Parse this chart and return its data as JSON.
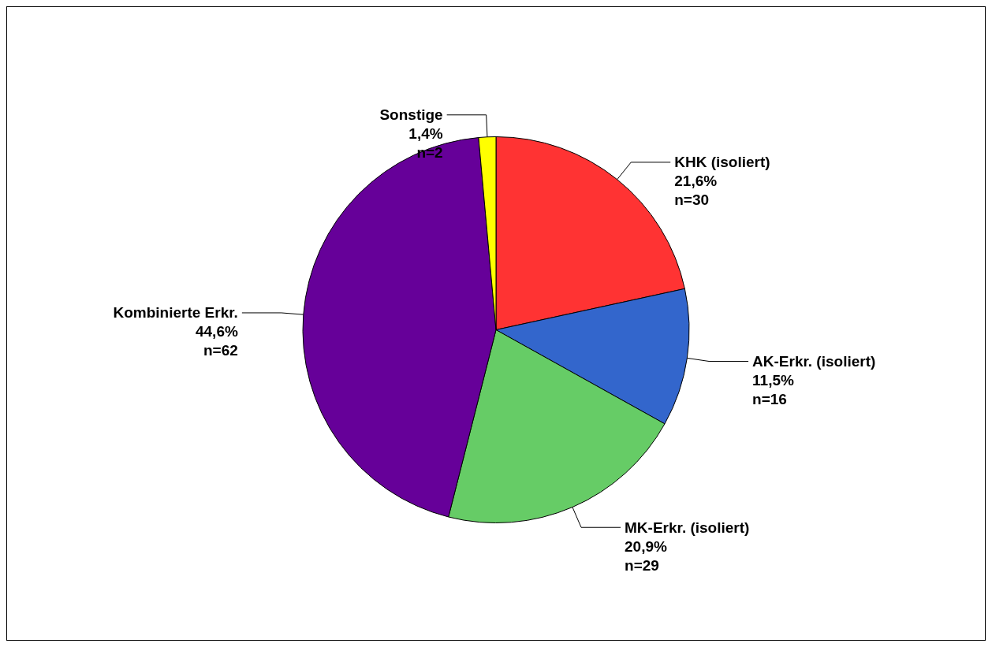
{
  "chart_data": {
    "type": "pie",
    "categories": [
      "KHK (isoliert)",
      "AK-Erkr. (isoliert)",
      "MK-Erkr. (isoliert)",
      "Kombinierte Erkr.",
      "Sonstige"
    ],
    "values": [
      30,
      16,
      29,
      62,
      2
    ],
    "value_labels": [
      "21,6%\nn=30",
      "11,5%\nn=16",
      "20,9%\nn=29",
      "44,6%\nn=62",
      "1,4%\nn=2"
    ],
    "colors": [
      "#ff3333",
      "#3366cc",
      "#66cc66",
      "#660099",
      "#ffff00"
    ],
    "legend": false
  }
}
